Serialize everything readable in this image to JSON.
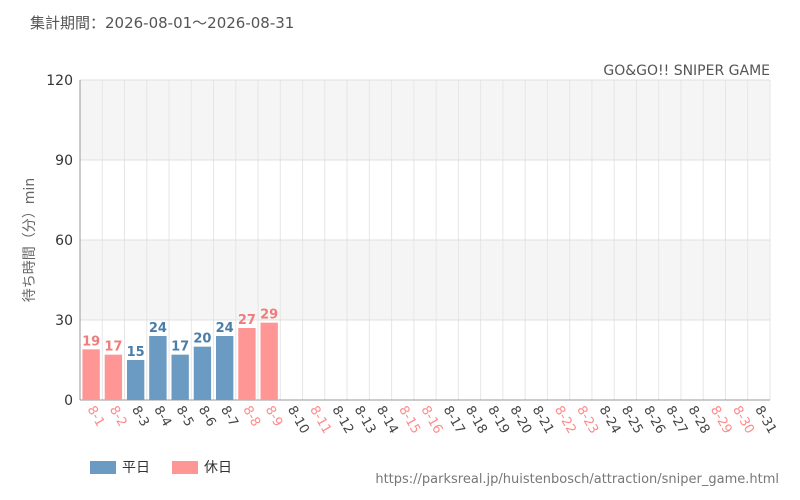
{
  "header": {
    "period": "集計期間：2026-08-01～2026-08-31"
  },
  "chart_data": {
    "type": "bar",
    "title": "GO&GO!! SNIPER GAME",
    "ylabel": "待ち時間（分）min",
    "xlabel": "",
    "ylim": [
      0,
      120
    ],
    "yticks": [
      0,
      30,
      60,
      90,
      120
    ],
    "grid": true,
    "categories": [
      "8-1",
      "8-2",
      "8-3",
      "8-4",
      "8-5",
      "8-6",
      "8-7",
      "8-8",
      "8-9",
      "8-10",
      "8-11",
      "8-12",
      "8-13",
      "8-14",
      "8-15",
      "8-16",
      "8-17",
      "8-18",
      "8-19",
      "8-20",
      "8-21",
      "8-22",
      "8-23",
      "8-24",
      "8-25",
      "8-26",
      "8-27",
      "8-28",
      "8-29",
      "8-30",
      "8-31"
    ],
    "values": [
      19,
      17,
      15,
      24,
      17,
      20,
      24,
      27,
      29,
      null,
      null,
      null,
      null,
      null,
      null,
      null,
      null,
      null,
      null,
      null,
      null,
      null,
      null,
      null,
      null,
      null,
      null,
      null,
      null,
      null,
      null
    ],
    "day_types": [
      "holiday",
      "holiday",
      "weekday",
      "weekday",
      "weekday",
      "weekday",
      "weekday",
      "holiday",
      "holiday",
      "weekday",
      "holiday",
      "weekday",
      "weekday",
      "weekday",
      "holiday",
      "holiday",
      "weekday",
      "weekday",
      "weekday",
      "weekday",
      "weekday",
      "holiday",
      "holiday",
      "weekday",
      "weekday",
      "weekday",
      "weekday",
      "weekday",
      "holiday",
      "holiday",
      "weekday"
    ],
    "series": [
      {
        "key": "weekday",
        "name": "平日",
        "color": "#6b9bc3",
        "label_color": "#4a7ea8"
      },
      {
        "key": "holiday",
        "name": "休日",
        "color": "#ff9696",
        "label_color": "#f07c7c"
      }
    ],
    "tick_colors": {
      "weekday": "#444444",
      "holiday": "#ff8a8a"
    },
    "legend_position": "bottom-left"
  },
  "footer": {
    "source_url": "https://parksreal.jp/huistenbosch/attraction/sniper_game.html"
  }
}
